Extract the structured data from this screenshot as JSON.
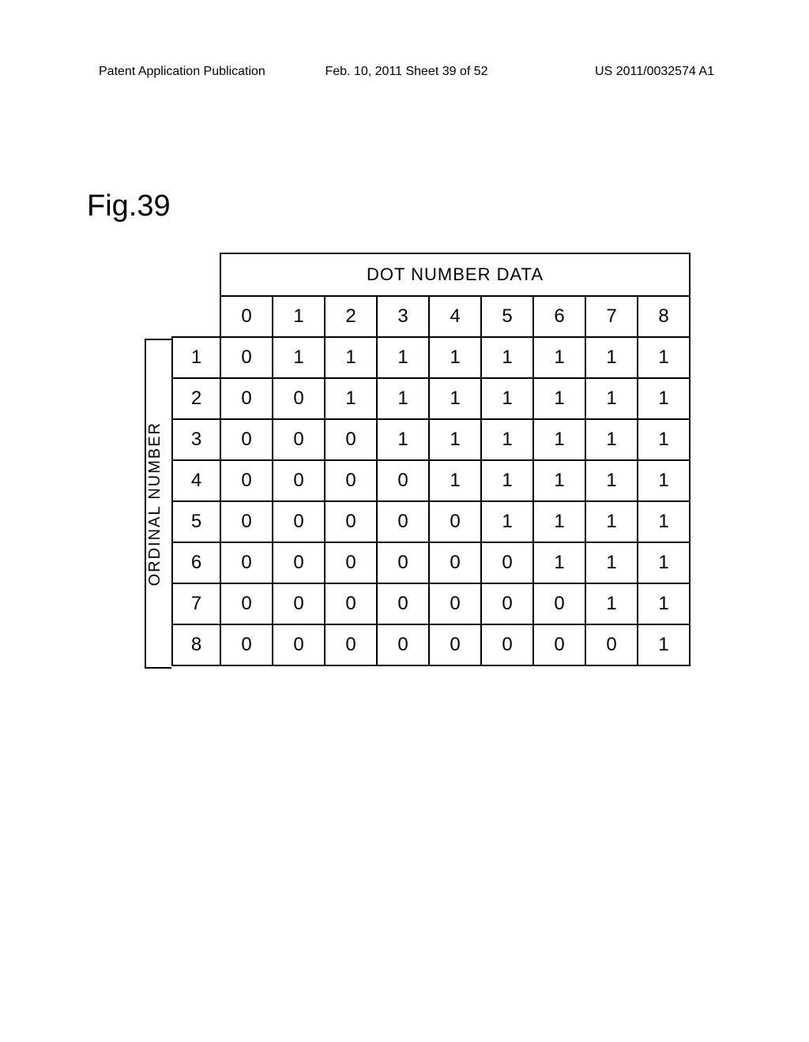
{
  "header": {
    "left": "Patent Application Publication",
    "center": "Feb. 10, 2011  Sheet 39 of 52",
    "right": "US 2011/0032574 A1"
  },
  "figure_label": "Fig.39",
  "table": {
    "type": "table",
    "title": "DOT NUMBER DATA",
    "row_axis_label": "ORDINAL NUMBER",
    "columns": [
      "0",
      "1",
      "2",
      "3",
      "4",
      "5",
      "6",
      "7",
      "8"
    ],
    "row_headers": [
      "1",
      "2",
      "3",
      "4",
      "5",
      "6",
      "7",
      "8"
    ],
    "rows": [
      [
        "0",
        "1",
        "1",
        "1",
        "1",
        "1",
        "1",
        "1",
        "1"
      ],
      [
        "0",
        "0",
        "1",
        "1",
        "1",
        "1",
        "1",
        "1",
        "1"
      ],
      [
        "0",
        "0",
        "0",
        "1",
        "1",
        "1",
        "1",
        "1",
        "1"
      ],
      [
        "0",
        "0",
        "0",
        "0",
        "1",
        "1",
        "1",
        "1",
        "1"
      ],
      [
        "0",
        "0",
        "0",
        "0",
        "0",
        "1",
        "1",
        "1",
        "1"
      ],
      [
        "0",
        "0",
        "0",
        "0",
        "0",
        "0",
        "1",
        "1",
        "1"
      ],
      [
        "0",
        "0",
        "0",
        "0",
        "0",
        "0",
        "0",
        "1",
        "1"
      ],
      [
        "0",
        "0",
        "0",
        "0",
        "0",
        "0",
        "0",
        "0",
        "1"
      ]
    ],
    "border_color": "#000000",
    "background_color": "#ffffff",
    "text_color": "#000000",
    "title_fontsize": 22,
    "cell_fontsize": 24,
    "label_fontsize": 20
  }
}
